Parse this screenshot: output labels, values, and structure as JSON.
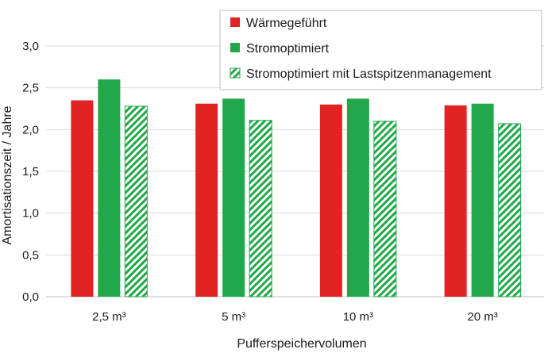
{
  "chart_data": {
    "type": "bar",
    "title": "",
    "xlabel": "Pufferspeichervolumen",
    "ylabel": "Amortisationszeit / Jahre",
    "categories": [
      "2,5 m³",
      "5 m³",
      "10 m³",
      "20 m³"
    ],
    "ylim": [
      0,
      3.0
    ],
    "yticks": [
      "0,0",
      "0,5",
      "1,0",
      "1,5",
      "2,0",
      "2,5",
      "3,0"
    ],
    "grid": true,
    "legend_position": "top-right",
    "series": [
      {
        "name": "Wärmegeführt",
        "values": [
          2.35,
          2.31,
          2.3,
          2.29
        ],
        "color": "#e02424",
        "fill": "solid"
      },
      {
        "name": "Stromoptimiert",
        "values": [
          2.6,
          2.37,
          2.37,
          2.31
        ],
        "color": "#21a84a",
        "fill": "solid"
      },
      {
        "name": "Stromoptimiert mit Lastspitzenmanagement",
        "values": [
          2.28,
          2.11,
          2.1,
          2.07
        ],
        "color": "#21a84a",
        "fill": "hatched"
      }
    ]
  }
}
